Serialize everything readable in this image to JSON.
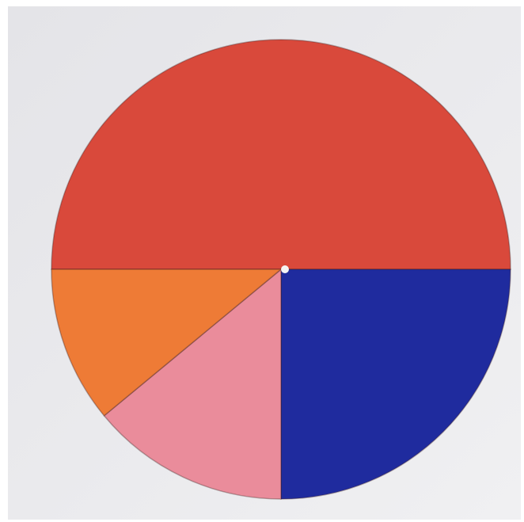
{
  "chart_data": {
    "type": "pie",
    "values": [
      50,
      25,
      14,
      11
    ],
    "colors": [
      "#d9493b",
      "#1f2b9e",
      "#ea8c9b",
      "#ee7b36"
    ]
  }
}
